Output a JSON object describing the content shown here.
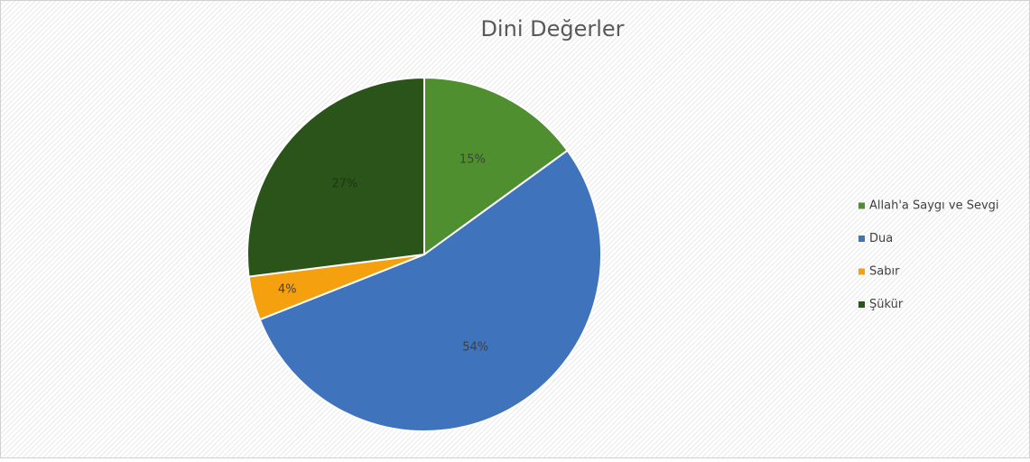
{
  "chart_data": {
    "type": "pie",
    "title": "Dini Değerler",
    "categories": [
      "Allah'a Saygı ve Sevgi",
      "Dua",
      "Sabır",
      "Şükür"
    ],
    "values": [
      15,
      54,
      4,
      27
    ],
    "value_labels": [
      "15%",
      "54%",
      "4%",
      "27%"
    ],
    "colors": [
      "#4f8f2f",
      "#3f73bb",
      "#f5a10f",
      "#2a5419"
    ],
    "legend": "right"
  }
}
